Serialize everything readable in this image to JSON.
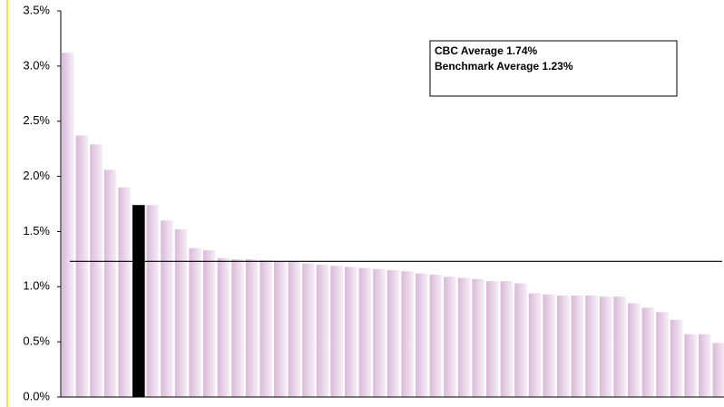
{
  "chart_data": {
    "type": "bar",
    "annotations": [
      "CBC Average 1.74%",
      "Benchmark Average 1.23%"
    ],
    "categories": [
      null,
      null,
      null,
      null,
      null,
      null,
      null,
      null,
      null,
      null,
      null,
      null,
      null,
      null,
      null,
      null,
      null,
      null,
      null,
      null,
      null,
      null,
      null,
      null,
      null,
      null,
      null,
      null,
      null,
      null,
      null,
      null,
      null,
      null,
      null,
      null,
      null,
      null,
      null,
      null,
      null,
      null,
      null,
      null,
      null,
      null,
      null
    ],
    "values": [
      3.12,
      2.37,
      2.29,
      2.06,
      1.9,
      1.74,
      1.74,
      1.6,
      1.52,
      1.35,
      1.33,
      1.26,
      1.25,
      1.25,
      1.24,
      1.23,
      1.23,
      1.21,
      1.2,
      1.19,
      1.18,
      1.17,
      1.16,
      1.15,
      1.14,
      1.12,
      1.11,
      1.09,
      1.08,
      1.07,
      1.05,
      1.05,
      1.03,
      0.94,
      0.93,
      0.92,
      0.92,
      0.92,
      0.91,
      0.91,
      0.85,
      0.81,
      0.77,
      0.7,
      0.57,
      0.57,
      0.49
    ],
    "color": "#d9b9d9",
    "highlight": {
      "index": 5,
      "color": "#000000"
    },
    "reference_line": {
      "value": 1.23,
      "color": "#000000"
    },
    "ylim": [
      0,
      3.5
    ],
    "yticks": [
      {
        "value": 0,
        "label": "0.0%"
      },
      {
        "value": 0.5,
        "label": "0.5%"
      },
      {
        "value": 1,
        "label": "1.0%"
      },
      {
        "value": 1.5,
        "label": "1.5%"
      },
      {
        "value": 2,
        "label": "2.0%"
      },
      {
        "value": 2.5,
        "label": "2.5%"
      },
      {
        "value": 3,
        "label": "3.0%"
      },
      {
        "value": 3.5,
        "label": "3.5%"
      }
    ],
    "grid": false
  }
}
